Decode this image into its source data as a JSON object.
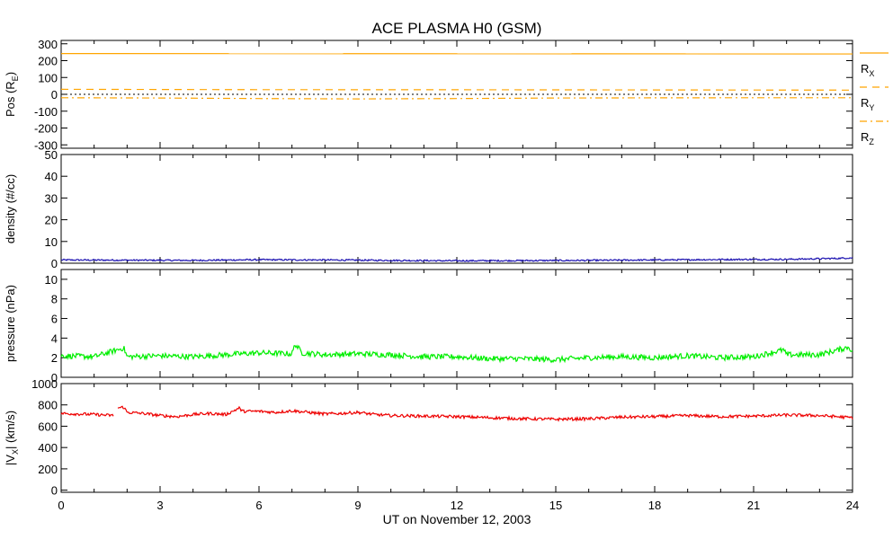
{
  "title": "ACE PLASMA H0 (GSM)",
  "x_axis": {
    "label": "UT on November 12, 2003",
    "ticks": [
      0,
      3,
      6,
      9,
      12,
      15,
      18,
      21,
      24
    ],
    "range": [
      0,
      24
    ]
  },
  "colors": {
    "orange": "#ffa500",
    "blue": "#1a10b0",
    "green": "#00ee00",
    "red": "#ee0000",
    "black": "#000000"
  },
  "chart_data": [
    {
      "type": "line",
      "id": "pos",
      "ylabel": "Pos (R",
      "ylabel_sub": "E",
      "ylabel_tail": ")",
      "ylim": [
        -320,
        320
      ],
      "yticks": [
        300,
        200,
        100,
        0,
        -100,
        -200,
        -300
      ],
      "zero_line": true,
      "legend_placement": "right",
      "series": [
        {
          "name": "R",
          "sub": "X",
          "style": "solid",
          "values": [
            [
              0,
              242
            ],
            [
              24,
              240
            ]
          ]
        },
        {
          "name": "R",
          "sub": "Y",
          "style": "dashed",
          "values": [
            [
              0,
              30
            ],
            [
              6,
              28
            ],
            [
              12,
              27
            ],
            [
              18,
              26
            ],
            [
              24,
              25
            ]
          ]
        },
        {
          "name": "R",
          "sub": "Z",
          "style": "dashdot",
          "values": [
            [
              0,
              -20
            ],
            [
              3,
              -22
            ],
            [
              6,
              -25
            ],
            [
              9,
              -27
            ],
            [
              12,
              -25
            ],
            [
              15,
              -22
            ],
            [
              18,
              -21
            ],
            [
              21,
              -20
            ],
            [
              24,
              -20
            ]
          ]
        }
      ]
    },
    {
      "type": "line",
      "id": "density",
      "ylabel": "density (#/cc)",
      "ylim": [
        0,
        50
      ],
      "yticks": [
        50,
        40,
        30,
        20,
        10,
        0
      ],
      "series": [
        {
          "values": [
            [
              0,
              1.5
            ],
            [
              2,
              1.4
            ],
            [
              4,
              1.3
            ],
            [
              6,
              1.6
            ],
            [
              8,
              1.5
            ],
            [
              10,
              1.3
            ],
            [
              12,
              1.1
            ],
            [
              14,
              1.2
            ],
            [
              16,
              1.3
            ],
            [
              18,
              1.5
            ],
            [
              20,
              1.7
            ],
            [
              22,
              1.8
            ],
            [
              23.5,
              2.2
            ],
            [
              24,
              2.5
            ]
          ]
        }
      ]
    },
    {
      "type": "line",
      "id": "pressure",
      "ylabel": "pressure (nPa)",
      "ylim": [
        0,
        11
      ],
      "yticks": [
        10,
        8,
        6,
        4,
        2,
        0
      ],
      "series": [
        {
          "values": [
            [
              0,
              2.2
            ],
            [
              1,
              2.1
            ],
            [
              1.9,
              3.0
            ],
            [
              2,
              2.1
            ],
            [
              3,
              2.2
            ],
            [
              4,
              2.1
            ],
            [
              5,
              2.3
            ],
            [
              6,
              2.5
            ],
            [
              7,
              2.4
            ],
            [
              7.1,
              3.4
            ],
            [
              7.3,
              2.5
            ],
            [
              8,
              2.3
            ],
            [
              9,
              2.4
            ],
            [
              10,
              2.3
            ],
            [
              11,
              2.1
            ],
            [
              12,
              2.1
            ],
            [
              13,
              1.9
            ],
            [
              14,
              1.9
            ],
            [
              15,
              1.8
            ],
            [
              16,
              2.0
            ],
            [
              17,
              2.1
            ],
            [
              18,
              2.0
            ],
            [
              19,
              2.2
            ],
            [
              20,
              2.0
            ],
            [
              21,
              2.1
            ],
            [
              21.9,
              2.8
            ],
            [
              22,
              2.3
            ],
            [
              23,
              2.3
            ],
            [
              23.9,
              3.1
            ],
            [
              24,
              2.5
            ]
          ]
        }
      ]
    },
    {
      "type": "line",
      "id": "vx",
      "ylabel": "|V",
      "ylabel_sub": "X",
      "ylabel_tail": "| (km/s)",
      "ylim": [
        -20,
        1000
      ],
      "yticks": [
        1000,
        800,
        600,
        400,
        200,
        0
      ],
      "series": [
        {
          "gap": [
            1.6,
            1.7
          ],
          "values": [
            [
              0,
              720
            ],
            [
              0.5,
              715
            ],
            [
              1.0,
              710
            ],
            [
              1.6,
              700
            ],
            [
              1.7,
              770
            ],
            [
              1.9,
              780
            ],
            [
              2.0,
              730
            ],
            [
              2.5,
              720
            ],
            [
              3.0,
              700
            ],
            [
              3.5,
              690
            ],
            [
              4.0,
              710
            ],
            [
              4.5,
              720
            ],
            [
              5.0,
              710
            ],
            [
              5.4,
              770
            ],
            [
              5.5,
              740
            ],
            [
              6.0,
              740
            ],
            [
              6.5,
              730
            ],
            [
              7.0,
              745
            ],
            [
              7.5,
              730
            ],
            [
              8.0,
              715
            ],
            [
              8.5,
              720
            ],
            [
              9.0,
              730
            ],
            [
              9.5,
              710
            ],
            [
              10.0,
              700
            ],
            [
              11.0,
              695
            ],
            [
              12.0,
              690
            ],
            [
              13.0,
              680
            ],
            [
              14.0,
              670
            ],
            [
              15.0,
              665
            ],
            [
              16.0,
              670
            ],
            [
              17.0,
              685
            ],
            [
              18.0,
              690
            ],
            [
              19.0,
              700
            ],
            [
              20.0,
              690
            ],
            [
              21.0,
              695
            ],
            [
              22.0,
              705
            ],
            [
              23.0,
              700
            ],
            [
              23.5,
              690
            ],
            [
              24.0,
              680
            ]
          ]
        }
      ]
    }
  ]
}
